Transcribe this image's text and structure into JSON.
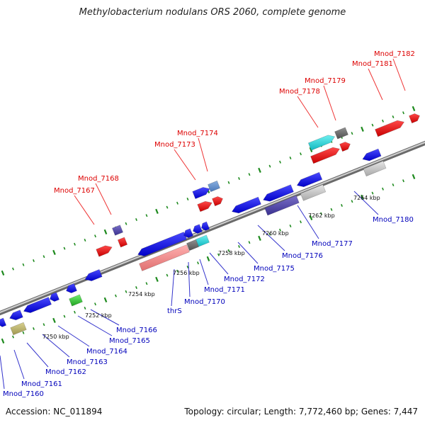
{
  "header": {
    "title": "Methylobacterium nodulans ORS 2060, complete genome"
  },
  "footer": {
    "accession": "Accession: NC_011894",
    "topology": "Topology: circular; Length: 7,772,460 bp; Genes: 7,447"
  },
  "colors": {
    "backbone": "#8a8a8a",
    "tick": "#1e8a1e",
    "forward_label": "#dd0000",
    "reverse_label": "#0000bb",
    "leader_forward": "#ee3333",
    "leader_reverse": "#3333cc"
  },
  "scale_labels": [
    "7250 kbp",
    "7252 kbp",
    "7254 kbp",
    "7256 kbp",
    "7258 kbp",
    "7260 kbp",
    "7262 kbp",
    "7264 kbp"
  ],
  "forward_labels": [
    "Mnod_7167",
    "Mnod_7168",
    "Mnod_7173",
    "Mnod_7174",
    "Mnod_7178",
    "Mnod_7179",
    "Mnod_7181",
    "Mnod_7182"
  ],
  "reverse_labels": [
    "Mnod_7160",
    "Mnod_7161",
    "Mnod_7162",
    "Mnod_7163",
    "Mnod_7164",
    "Mnod_7165",
    "Mnod_7166",
    "thrS",
    "Mnod_7170",
    "Mnod_7171",
    "Mnod_7172",
    "Mnod_7175",
    "Mnod_7176",
    "Mnod_7177",
    "Mnod_7180"
  ]
}
